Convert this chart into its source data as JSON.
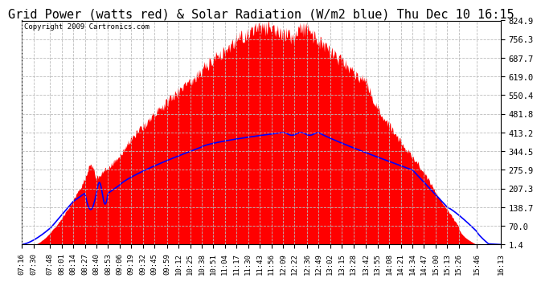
{
  "title": "Grid Power (watts red) & Solar Radiation (W/m2 blue) Thu Dec 10 16:15",
  "copyright": "Copyright 2009 Cartronics.com",
  "yticks": [
    1.4,
    70.0,
    138.7,
    207.3,
    275.9,
    344.5,
    413.2,
    481.8,
    550.4,
    619.0,
    687.7,
    756.3,
    824.9
  ],
  "ymin": 1.4,
  "ymax": 824.9,
  "background_color": "#ffffff",
  "grid_color": "#bbbbbb",
  "fill_color": "#ff0000",
  "line_color": "#0000ff",
  "title_fontsize": 11,
  "xtick_labels": [
    "07:16",
    "07:30",
    "07:48",
    "08:01",
    "08:14",
    "08:27",
    "08:40",
    "08:53",
    "09:06",
    "09:19",
    "09:32",
    "09:45",
    "09:59",
    "10:12",
    "10:25",
    "10:38",
    "10:51",
    "11:04",
    "11:17",
    "11:30",
    "11:43",
    "11:56",
    "12:09",
    "12:22",
    "12:36",
    "12:49",
    "13:02",
    "13:15",
    "13:28",
    "13:42",
    "13:55",
    "14:08",
    "14:21",
    "14:34",
    "14:47",
    "15:00",
    "15:13",
    "15:26",
    "15:46",
    "16:13"
  ]
}
